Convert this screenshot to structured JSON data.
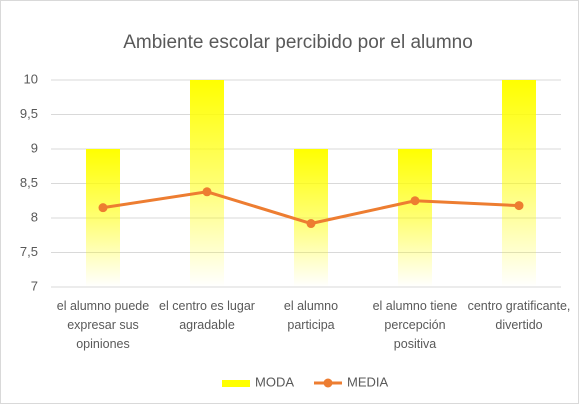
{
  "chart_data": {
    "type": "combo",
    "title": "Ambiente escolar percibido por el alumno",
    "categories": [
      "el alumno puede expresar sus opiniones",
      "el centro es lugar agradable",
      "el alumno participa",
      "el alumno tiene percepción positiva",
      "centro gratificante, divertido"
    ],
    "series": [
      {
        "name": "MODA",
        "type": "bar",
        "color": "#ffff00",
        "values": [
          9,
          10,
          9,
          9,
          10
        ]
      },
      {
        "name": "MEDIA",
        "type": "line",
        "color": "#ed7d31",
        "values": [
          8.15,
          8.38,
          7.92,
          8.25,
          8.18
        ]
      }
    ],
    "ylim": [
      7,
      10
    ],
    "yticks": [
      7,
      {
        "value": 7.5,
        "label": "7,5"
      },
      8,
      {
        "value": 8.5,
        "label": "8,5"
      },
      9,
      {
        "value": 9.5,
        "label": "9,5"
      },
      10
    ],
    "grid": true,
    "legend": "bottom"
  }
}
